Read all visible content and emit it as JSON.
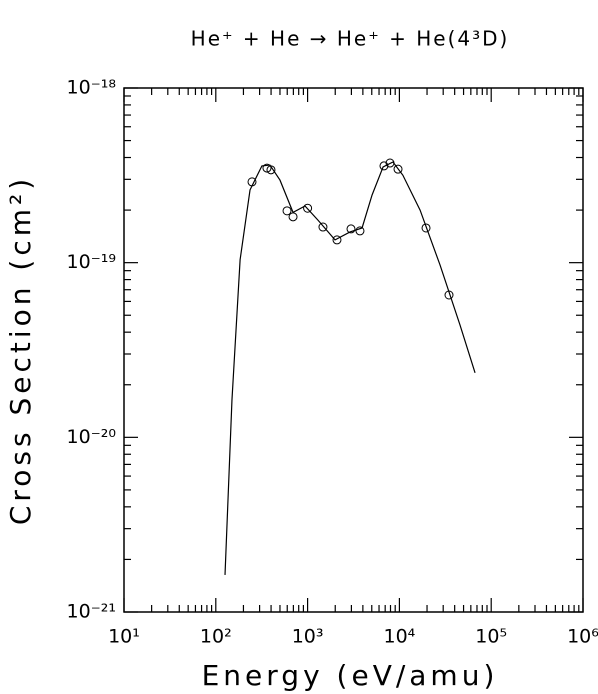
{
  "chart_data": {
    "type": "scatter",
    "title": "He⁺ + He → He⁺ + He(4³D)",
    "x_label": "Energy (eV/amu)",
    "y_label": "Cross Section (cm²)",
    "xscale": "log",
    "yscale": "log",
    "xlim": [
      10,
      1000000
    ],
    "ylim": [
      1e-21,
      1e-18
    ],
    "xticks": [
      {
        "value": 10,
        "label": "10¹"
      },
      {
        "value": 100,
        "label": "10²"
      },
      {
        "value": 1000,
        "label": "10³"
      },
      {
        "value": 10000,
        "label": "10⁴"
      },
      {
        "value": 100000,
        "label": "10⁵"
      },
      {
        "value": 1000000,
        "label": "10⁶"
      }
    ],
    "yticks": [
      {
        "value": 1e-21,
        "label": "10⁻²¹"
      },
      {
        "value": 1e-20,
        "label": "10⁻²⁰"
      },
      {
        "value": 1e-19,
        "label": "10⁻¹⁹"
      },
      {
        "value": 1e-18,
        "label": "10⁻¹⁸"
      }
    ],
    "minor_ticks": true,
    "series": [
      {
        "kind": "markers",
        "color": "#000000",
        "x": [
          248,
          361,
          399,
          597,
          694,
          1000,
          1470,
          2090,
          2970,
          3720,
          6790,
          7900,
          9660,
          19500,
          34700
        ],
        "values": [
          2.9e-19,
          3.48e-19,
          3.4e-19,
          1.98e-19,
          1.83e-19,
          2.05e-19,
          1.6e-19,
          1.35e-19,
          1.56e-19,
          1.52e-19,
          3.58e-19,
          3.72e-19,
          3.43e-19,
          1.58e-19,
          6.53e-20
        ]
      },
      {
        "kind": "line",
        "color": "#000000",
        "x": [
          126,
          150,
          184,
          236,
          318,
          389,
          500,
          694,
          937,
          1300,
          1990,
          2900,
          3920,
          5040,
          6640,
          8510,
          10900,
          16800,
          27700,
          45700,
          66700
        ],
        "values": [
          1.63e-21,
          1.64e-20,
          1.04e-19,
          2.61e-19,
          3.58e-19,
          3.62e-19,
          2.97e-19,
          1.94e-19,
          2.11e-19,
          1.75e-19,
          1.35e-19,
          1.5e-19,
          1.58e-19,
          2.44e-19,
          3.53e-19,
          3.77e-19,
          3.17e-19,
          2e-19,
          9.7e-20,
          4.4e-20,
          2.34e-20
        ]
      }
    ]
  }
}
